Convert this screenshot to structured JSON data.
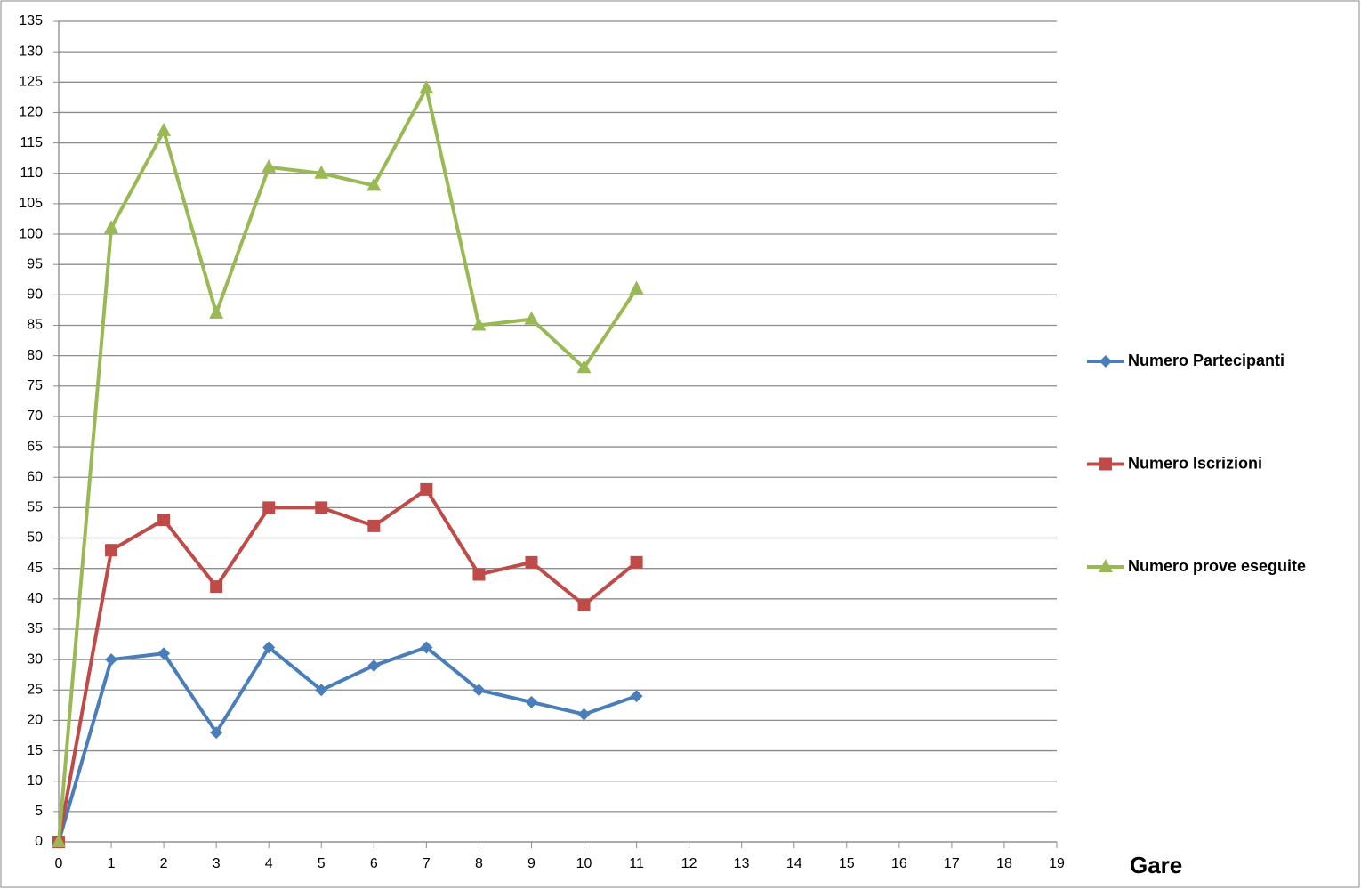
{
  "chart_data": {
    "type": "line",
    "x_label": "Gare",
    "x": [
      0,
      1,
      2,
      3,
      4,
      5,
      6,
      7,
      8,
      9,
      10,
      11
    ],
    "series": [
      {
        "name": "Numero Partecipanti",
        "color": "#4a7ebb",
        "marker": "diamond",
        "values": [
          0,
          30,
          31,
          18,
          32,
          25,
          29,
          32,
          25,
          23,
          21,
          24
        ]
      },
      {
        "name": "Numero Iscrizioni",
        "color": "#be4b48",
        "marker": "square",
        "values": [
          0,
          48,
          53,
          42,
          55,
          55,
          52,
          58,
          44,
          46,
          39,
          46
        ]
      },
      {
        "name": "Numero prove eseguite",
        "color": "#98b954",
        "marker": "triangle",
        "values": [
          0,
          101,
          117,
          87,
          111,
          110,
          108,
          124,
          85,
          86,
          78,
          91
        ]
      }
    ],
    "xlim": [
      0,
      19
    ],
    "xticks": [
      0,
      1,
      2,
      3,
      4,
      5,
      6,
      7,
      8,
      9,
      10,
      11,
      12,
      13,
      14,
      15,
      16,
      17,
      18,
      19
    ],
    "ylim": [
      0,
      135
    ],
    "yticks": [
      0,
      5,
      10,
      15,
      20,
      25,
      30,
      35,
      40,
      45,
      50,
      55,
      60,
      65,
      70,
      75,
      80,
      85,
      90,
      95,
      100,
      105,
      110,
      115,
      120,
      125,
      130,
      135
    ],
    "grid": true,
    "legend": "right"
  }
}
